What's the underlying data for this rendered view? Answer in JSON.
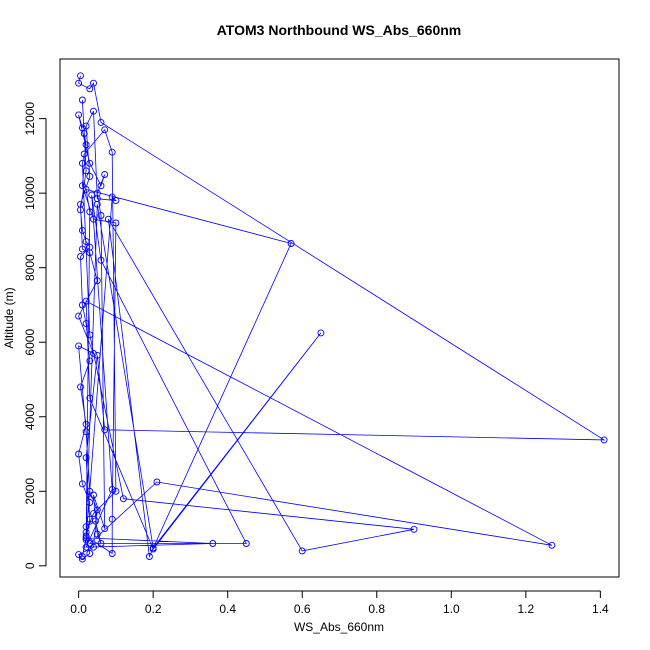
{
  "chart_data": {
    "type": "line",
    "title": "ATOM3 Northbound WS_Abs_660nm",
    "xlabel": "WS_Abs_660nm",
    "ylabel": "Altitude (m)",
    "xlim": [
      -0.05,
      1.45
    ],
    "ylim": [
      -300,
      13600
    ],
    "xticks": [
      "0.0",
      "0.2",
      "0.4",
      "0.6",
      "0.8",
      "1.0",
      "1.2",
      "1.4"
    ],
    "xtick_values": [
      0,
      0.2,
      0.4,
      0.6,
      0.8,
      1.0,
      1.2,
      1.4
    ],
    "yticks": [
      "0",
      "2000",
      "4000",
      "6000",
      "8000",
      "10000",
      "12000"
    ],
    "ytick_values": [
      0,
      2000,
      4000,
      6000,
      8000,
      10000,
      12000
    ],
    "grid": false,
    "series": [
      {
        "color": "#0000ff",
        "marker": "open-circle",
        "points": [
          [
            0.005,
            13150
          ],
          [
            0.0,
            12950
          ],
          [
            0.03,
            12800
          ],
          [
            0.04,
            12950
          ],
          [
            0.06,
            11900
          ],
          [
            1.41,
            3380
          ],
          [
            0.07,
            3650
          ],
          [
            0.05,
            5650
          ],
          [
            0.02,
            2900
          ],
          [
            0.03,
            1250
          ],
          [
            0.01,
            250
          ],
          [
            0.02,
            700
          ],
          [
            0.03,
            9500
          ],
          [
            0.02,
            10100
          ],
          [
            0.57,
            8650
          ],
          [
            0.19,
            250
          ],
          [
            0.08,
            9300
          ],
          [
            0.6,
            400
          ],
          [
            0.9,
            980
          ],
          [
            0.12,
            1800
          ],
          [
            0.03,
            6200
          ],
          [
            0.01,
            10800
          ],
          [
            0.015,
            11050
          ],
          [
            0.07,
            11700
          ],
          [
            0.09,
            11100
          ],
          [
            0.1,
            2000
          ],
          [
            0.04,
            1400
          ],
          [
            0.02,
            900
          ],
          [
            0.05,
            9700
          ],
          [
            0.2,
            480
          ],
          [
            0.65,
            6250
          ],
          [
            0.2,
            450
          ],
          [
            0.03,
            4500
          ],
          [
            0.02,
            7100
          ],
          [
            1.27,
            550
          ],
          [
            0.21,
            2250
          ],
          [
            0.03,
            600
          ],
          [
            0.45,
            600
          ],
          [
            0.06,
            8200
          ],
          [
            0.035,
            9950
          ],
          [
            0.09,
            2050
          ],
          [
            0.02,
            500
          ],
          [
            0.36,
            600
          ],
          [
            0.02,
            750
          ],
          [
            0.09,
            9900
          ],
          [
            0.1,
            9800
          ],
          [
            0.05,
            9850
          ],
          [
            0.04,
            12200
          ],
          [
            0.02,
            11800
          ],
          [
            0.03,
            10450
          ],
          [
            0.005,
            9700
          ],
          [
            0.01,
            8500
          ],
          [
            0.03,
            8400
          ],
          [
            0.05,
            7650
          ],
          [
            0.0,
            6700
          ],
          [
            0.04,
            5700
          ],
          [
            0.0,
            5900
          ],
          [
            0.02,
            3600
          ],
          [
            0.03,
            2000
          ],
          [
            0.05,
            1500
          ],
          [
            0.04,
            500
          ],
          [
            0.0,
            300
          ],
          [
            0.01,
            180
          ],
          [
            0.03,
            330
          ],
          [
            0.02,
            800
          ],
          [
            0.09,
            330
          ],
          [
            0.09,
            1250
          ],
          [
            0.1,
            9200
          ],
          [
            0.04,
            9300
          ],
          [
            0.01,
            10200
          ],
          [
            0.02,
            11300
          ],
          [
            0.015,
            11600
          ],
          [
            0.01,
            12500
          ],
          [
            0.02,
            10600
          ],
          [
            0.005,
            9550
          ],
          [
            0.01,
            9000
          ],
          [
            0.02,
            8700
          ],
          [
            0.03,
            8550
          ],
          [
            0.005,
            8300
          ],
          [
            0.01,
            7000
          ],
          [
            0.02,
            6500
          ],
          [
            0.03,
            5500
          ],
          [
            0.005,
            4800
          ],
          [
            0.02,
            3800
          ],
          [
            0.0,
            3000
          ],
          [
            0.01,
            2200
          ],
          [
            0.03,
            1700
          ],
          [
            0.02,
            1050
          ],
          [
            0.045,
            1200
          ],
          [
            0.06,
            600
          ],
          [
            0.05,
            850
          ],
          [
            0.04,
            1900
          ],
          [
            0.07,
            1000
          ],
          [
            0.06,
            9400
          ],
          [
            0.05,
            10000
          ],
          [
            0.07,
            10500
          ],
          [
            0.06,
            10200
          ],
          [
            0.03,
            10800
          ],
          [
            0.0,
            12100
          ],
          [
            0.01,
            11750
          ]
        ]
      }
    ]
  }
}
